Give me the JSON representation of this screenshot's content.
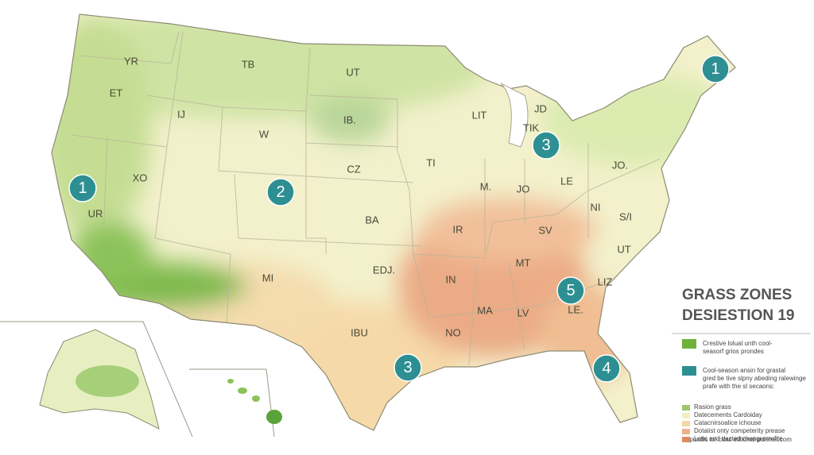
{
  "header": {
    "title": "GRASS ZONES",
    "subtitle": "DESIESTION 19"
  },
  "map": {
    "state_labels": [
      "YR",
      "TB",
      "UT",
      "ET",
      "IJ",
      "W",
      "IB.",
      "LIT",
      "JD",
      "TIK",
      "XO",
      "CZ",
      "TI",
      "M.",
      "JO",
      "LE",
      "JO.",
      "UR",
      "BA",
      "IR",
      "SV",
      "NI",
      "S/I",
      "EDJ.",
      "MI",
      "IN",
      "MT",
      "UT",
      "LIZ",
      "IBU",
      "NO",
      "MA",
      "LV",
      "LE."
    ],
    "markers": [
      "1",
      "1",
      "2",
      "3",
      "5",
      "3",
      "4"
    ]
  },
  "legend": {
    "items": [
      {
        "color": "#6fb23a",
        "lines": [
          "Crestive lolual unth cool-",
          "seasorf grios prondes"
        ]
      },
      {
        "color": "#2e8f93",
        "lines": [
          "Cool-season ansin for grastal",
          "gred be tive slpny abeding ralewinge",
          "prafe with the sl secaons:"
        ]
      },
      {
        "color": "#9cc86a",
        "lines": [
          "Rasion grass"
        ]
      },
      {
        "color": "#f1f0c4",
        "lines": [
          "Datecements Cardoiday"
        ]
      },
      {
        "color": "#f6d6a8",
        "lines": [
          "Catacnirsoalice ichouse"
        ]
      },
      {
        "color": "#eeb08c",
        "lines": [
          "Dotaiist onty competerity prease"
        ]
      },
      {
        "color": "#e0895e",
        "lines": [
          "Latic and dacted chengremefite"
        ]
      }
    ]
  },
  "footer": "trapusdis tol clout etitional pulehet.com"
}
